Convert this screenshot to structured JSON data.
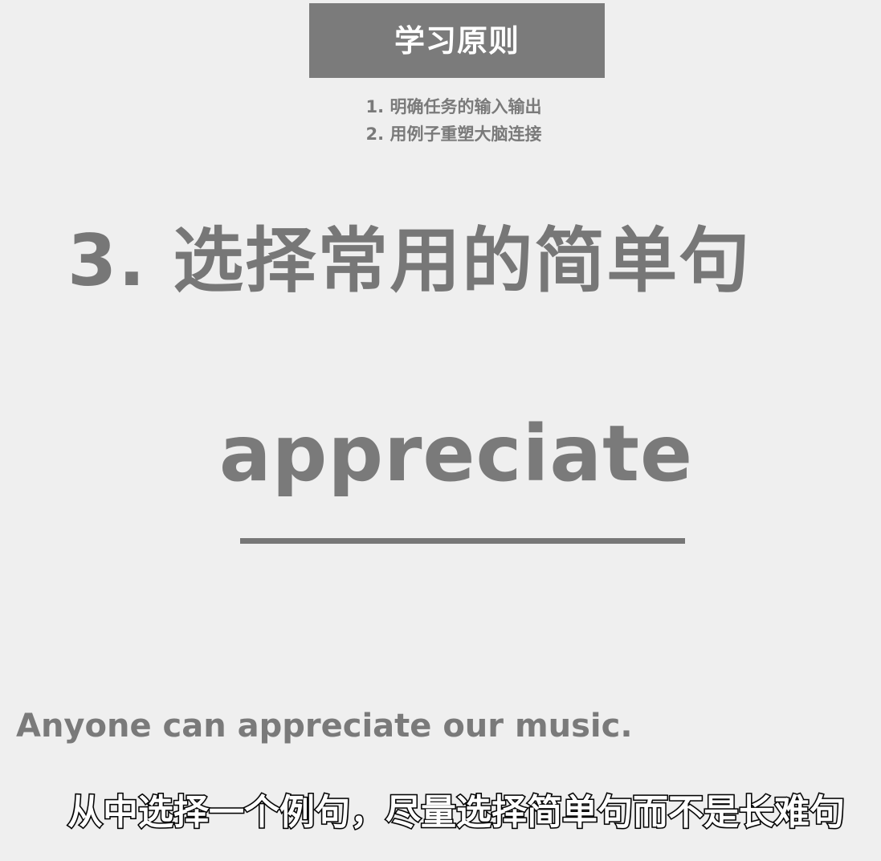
{
  "header": {
    "title": "学习原则"
  },
  "principles": [
    "1. 明确任务的输入输出",
    "2. 用例子重塑大脑连接"
  ],
  "main": {
    "heading": "3. 选择常用的简单句",
    "keyword": "appreciate",
    "example_sentence": "Anyone can appreciate our music."
  },
  "subtitle": {
    "text": "从中选择一个例句，尽量选择简单句而不是长难句"
  },
  "colors": {
    "background": "#efefef",
    "header_box": "#7b7b7b",
    "text_gray": "#7a7a7a",
    "subtitle_fill": "#ffffff",
    "subtitle_stroke": "#000000"
  }
}
